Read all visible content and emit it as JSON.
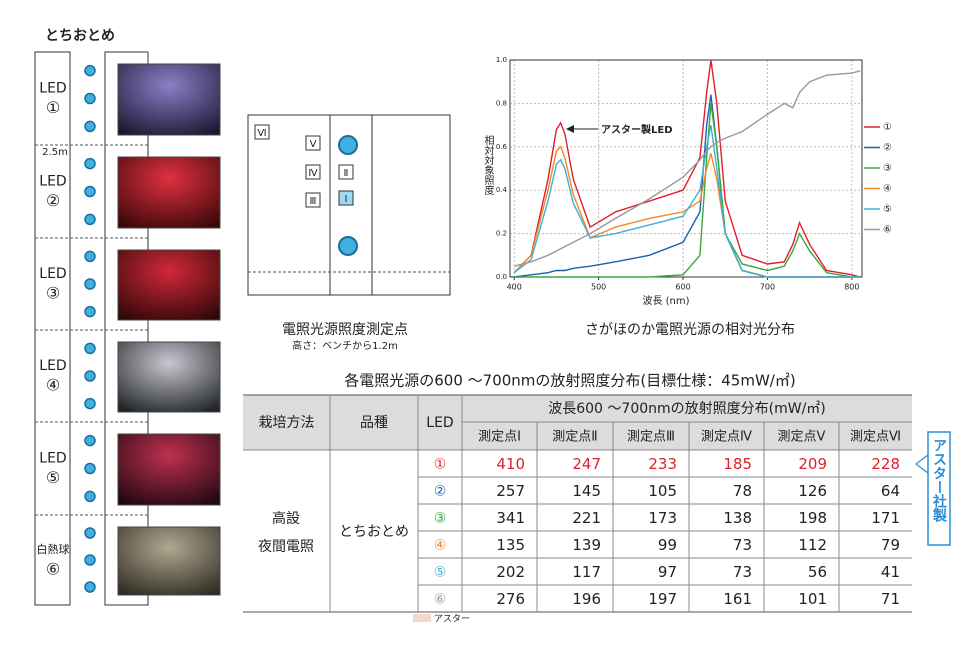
{
  "left_panel": {
    "title": "とちおとめ",
    "distance": "2.5m",
    "sections": [
      {
        "label": "LED",
        "number": "①"
      },
      {
        "label": "LED",
        "number": "②"
      },
      {
        "label": "LED",
        "number": "③"
      },
      {
        "label": "LED",
        "number": "④"
      },
      {
        "label": "LED",
        "number": "⑤"
      },
      {
        "label": "白熱球",
        "number": "⑥"
      }
    ]
  },
  "diagram": {
    "points": [
      "Ⅵ",
      "Ⅴ",
      "Ⅳ",
      "Ⅲ",
      "Ⅱ",
      "Ⅰ"
    ],
    "caption": "電照光源照度測定点",
    "subcaption": "高さ：ベンチから1.2m"
  },
  "chart_data": {
    "type": "line",
    "title": "さがほのか電照光源の相対光分布",
    "xlabel": "波長 (nm)",
    "ylabel": "相対対象照度",
    "annotation": "アスター製LED",
    "x": [
      400,
      420,
      440,
      450,
      455,
      460,
      470,
      490,
      520,
      560,
      600,
      620,
      628,
      633,
      640,
      650,
      670,
      700,
      720,
      730,
      738,
      750,
      770,
      800,
      810
    ],
    "xlim": [
      395,
      812
    ],
    "xticks": [
      400,
      500,
      600,
      700,
      800
    ],
    "ylim": [
      0,
      1
    ],
    "yticks": [
      {
        "value": 0,
        "label": "0.0"
      },
      0.2,
      0.4,
      0.6,
      0.8,
      {
        "value": 1,
        "label": "1.0"
      }
    ],
    "grid": true,
    "series": [
      {
        "name": "①",
        "color": "#e0202a",
        "values": [
          0.02,
          0.1,
          0.45,
          0.68,
          0.71,
          0.66,
          0.45,
          0.23,
          0.3,
          0.35,
          0.4,
          0.55,
          0.85,
          1.0,
          0.8,
          0.35,
          0.1,
          0.06,
          0.07,
          0.15,
          0.25,
          0.15,
          0.03,
          0.01,
          0.0
        ]
      },
      {
        "name": "②",
        "color": "#1f5fae",
        "values": [
          0.0,
          0.01,
          0.02,
          0.03,
          0.03,
          0.03,
          0.04,
          0.05,
          0.07,
          0.1,
          0.16,
          0.3,
          0.7,
          0.84,
          0.6,
          0.2,
          0.03,
          0.0,
          0.0,
          0.0,
          0.0,
          0.0,
          0.0,
          0.0,
          0.0
        ]
      },
      {
        "name": "③",
        "color": "#3aa83a",
        "values": [
          0.0,
          0.0,
          0.0,
          0.0,
          0.0,
          0.0,
          0.0,
          0.0,
          0.0,
          0.0,
          0.01,
          0.1,
          0.55,
          0.8,
          0.6,
          0.2,
          0.06,
          0.03,
          0.05,
          0.12,
          0.2,
          0.12,
          0.02,
          0.0,
          0.0
        ]
      },
      {
        "name": "④",
        "color": "#f08a24",
        "values": [
          0.02,
          0.1,
          0.4,
          0.58,
          0.6,
          0.55,
          0.38,
          0.18,
          0.23,
          0.27,
          0.3,
          0.35,
          0.5,
          0.57,
          0.45,
          0.2,
          0.03,
          0.0,
          0.0,
          0.0,
          0.0,
          0.0,
          0.0,
          0.0,
          0.0
        ]
      },
      {
        "name": "⑤",
        "color": "#3fb0d8",
        "values": [
          0.02,
          0.08,
          0.35,
          0.52,
          0.54,
          0.5,
          0.34,
          0.18,
          0.2,
          0.24,
          0.28,
          0.4,
          0.6,
          0.7,
          0.5,
          0.2,
          0.03,
          0.0,
          0.0,
          0.0,
          0.0,
          0.0,
          0.0,
          0.0,
          0.0
        ]
      },
      {
        "name": "⑥",
        "color": "#999999",
        "values": [
          0.05,
          0.07,
          0.1,
          0.12,
          0.13,
          0.14,
          0.16,
          0.2,
          0.27,
          0.36,
          0.46,
          0.54,
          0.58,
          0.6,
          0.62,
          0.64,
          0.67,
          0.75,
          0.8,
          0.78,
          0.85,
          0.9,
          0.93,
          0.94,
          0.95
        ]
      }
    ]
  },
  "table": {
    "title": "各電照光源の600 ～700nmの放射照度分布(目標仕様：45mW/㎡)",
    "headers": [
      "栽培方法",
      "品種",
      "LED"
    ],
    "group_header": "波長600 ～700nmの放射照度分布(mW/㎡)",
    "subheaders": [
      "測定点Ⅰ",
      "測定点Ⅱ",
      "測定点Ⅲ",
      "測定点Ⅳ",
      "測定点Ⅴ",
      "測定点Ⅵ"
    ],
    "method": [
      "高設",
      "夜間電照"
    ],
    "variety": "とちおとめ",
    "rows": [
      {
        "led": "①",
        "color": "#e0202a",
        "value_color": "#e0202a",
        "values": [
          410,
          247,
          233,
          185,
          209,
          228
        ]
      },
      {
        "led": "②",
        "color": "#1f5fae",
        "values": [
          257,
          145,
          105,
          78,
          126,
          64
        ]
      },
      {
        "led": "③",
        "color": "#3aa83a",
        "values": [
          341,
          221,
          173,
          138,
          198,
          171
        ]
      },
      {
        "led": "④",
        "color": "#f08a24",
        "values": [
          135,
          139,
          99,
          73,
          112,
          79
        ]
      },
      {
        "led": "⑤",
        "color": "#3fb0d8",
        "values": [
          202,
          117,
          97,
          73,
          56,
          41
        ]
      },
      {
        "led": "⑥",
        "color": "#999999",
        "values": [
          276,
          196,
          197,
          161,
          101,
          71
        ]
      }
    ]
  },
  "side_note": "アスター社製",
  "footer_legend": "アスター"
}
